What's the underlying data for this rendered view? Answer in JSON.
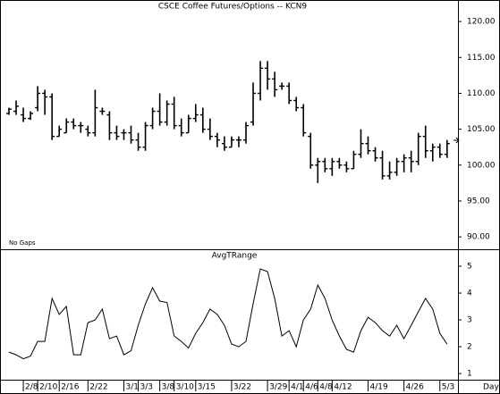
{
  "chart_data": [
    {
      "type": "ohlc",
      "title": "CSCE Coffee Futures/Options -- KCN9",
      "annotation": "No Gaps",
      "color": "#000000",
      "open": [
        107.2,
        107.5,
        107,
        106.5,
        108,
        110,
        109.5,
        104,
        104.5,
        106,
        105.5,
        105,
        104.5,
        107.5,
        107,
        104.5,
        104.5,
        104.5,
        103.5,
        102.5,
        105.5,
        107.5,
        106,
        108.5,
        105.5,
        104.5,
        106.5,
        107,
        105,
        104,
        103,
        102.5,
        103.5,
        103.5,
        106,
        110,
        113.5,
        112,
        111,
        111,
        109,
        108,
        104,
        100,
        100.5,
        99.5,
        100.5,
        100,
        99.5,
        101.5,
        103,
        102,
        101,
        98.5,
        99,
        100.5,
        101,
        100.5,
        104,
        102,
        102.5,
        101.5
      ],
      "high": [
        108,
        109,
        108,
        107.5,
        111,
        110.5,
        110,
        105.5,
        106.5,
        106.5,
        106,
        105.5,
        110.5,
        108,
        107.5,
        105.5,
        105,
        105.5,
        104.5,
        106,
        108,
        110,
        109,
        109.5,
        106.5,
        107,
        108.5,
        108,
        106.5,
        104.5,
        104,
        104,
        104,
        106,
        111.5,
        114.5,
        114.5,
        113,
        111.5,
        111.5,
        109.5,
        108.5,
        104.5,
        101,
        101,
        101,
        101,
        100.5,
        102,
        105,
        104,
        102.5,
        102,
        100.5,
        101,
        101.5,
        102,
        104.5,
        105.5,
        103,
        103,
        103.5
      ],
      "low": [
        107,
        107,
        106,
        106.3,
        107.5,
        107,
        103.5,
        104,
        104.5,
        105,
        104.5,
        104,
        104,
        107,
        103.5,
        103.5,
        103.5,
        103,
        102,
        102,
        105,
        105.5,
        105.5,
        105,
        104,
        104.5,
        106,
        104.5,
        103.5,
        102.5,
        102,
        102.5,
        102.5,
        103,
        105.5,
        109,
        110.5,
        109.5,
        110.5,
        108.5,
        107.5,
        104,
        99.5,
        97.5,
        99,
        98.5,
        99.5,
        99,
        99.5,
        101,
        101.5,
        100.5,
        98,
        98,
        98.5,
        99,
        99,
        100,
        101,
        100.5,
        101,
        101
      ],
      "close": [
        107.8,
        108.2,
        106.5,
        107.2,
        110,
        109.5,
        104,
        105,
        106,
        105.5,
        105.5,
        104.5,
        108,
        107.5,
        104.5,
        104,
        104.5,
        103.5,
        102.5,
        105.5,
        107.5,
        106,
        108.5,
        105.5,
        104.5,
        106.5,
        107,
        105,
        104,
        103.5,
        102.5,
        103.5,
        103.5,
        105.5,
        110,
        113.5,
        112,
        110.5,
        111,
        109,
        108,
        104.5,
        100,
        100.5,
        99.5,
        100.5,
        100,
        99.5,
        101.5,
        103,
        102,
        101,
        98.5,
        99,
        100.5,
        101,
        100.5,
        104,
        102,
        102.5,
        101.5,
        103
      ],
      "ylim": [
        88.4,
        123
      ],
      "yticks": [
        {
          "value": 90,
          "label": "90.00"
        },
        {
          "value": 95,
          "label": "95.00"
        },
        {
          "value": 100,
          "label": "100.00"
        },
        {
          "value": 105,
          "label": "105.00"
        },
        {
          "value": 110,
          "label": "110.00"
        },
        {
          "value": 115,
          "label": "115.00"
        },
        {
          "value": 120,
          "label": "120.00"
        }
      ]
    },
    {
      "type": "line",
      "title": "AvgTRange",
      "xlabel": "Day",
      "color": "#000000",
      "categories": [
        null,
        null,
        "2/8",
        null,
        "2/10",
        null,
        null,
        "2/16",
        null,
        null,
        null,
        "2/22",
        null,
        null,
        null,
        null,
        "3/1",
        null,
        "3/3",
        null,
        null,
        "3/8",
        null,
        "3/10",
        null,
        null,
        "3/15",
        null,
        null,
        null,
        null,
        "3/22",
        null,
        null,
        null,
        null,
        "3/29",
        null,
        null,
        "4/1",
        null,
        "4/6",
        null,
        "4/8",
        null,
        "4/12",
        null,
        null,
        null,
        null,
        "4/19",
        null,
        null,
        null,
        null,
        "4/26",
        null,
        null,
        null,
        null,
        "5/3",
        null
      ],
      "values": [
        1.8,
        1.7,
        1.55,
        1.65,
        2.2,
        2.2,
        3.8,
        3.2,
        3.5,
        1.7,
        1.7,
        2.9,
        3.0,
        3.4,
        2.3,
        2.4,
        1.7,
        1.85,
        2.8,
        3.6,
        4.2,
        3.7,
        3.65,
        2.4,
        2.2,
        1.95,
        2.5,
        2.9,
        3.4,
        3.2,
        2.8,
        2.1,
        2.0,
        2.2,
        3.6,
        4.9,
        4.8,
        3.8,
        2.4,
        2.6,
        2.0,
        3.0,
        3.4,
        4.3,
        3.8,
        3.0,
        2.4,
        1.9,
        1.8,
        2.6,
        3.1,
        2.9,
        2.6,
        2.4,
        2.8,
        2.3,
        2.8,
        3.3,
        3.8,
        3.4,
        2.5,
        2.1
      ],
      "ylim": [
        0.77,
        5.6
      ],
      "yticks": [
        1,
        2,
        3,
        4,
        5
      ]
    }
  ]
}
